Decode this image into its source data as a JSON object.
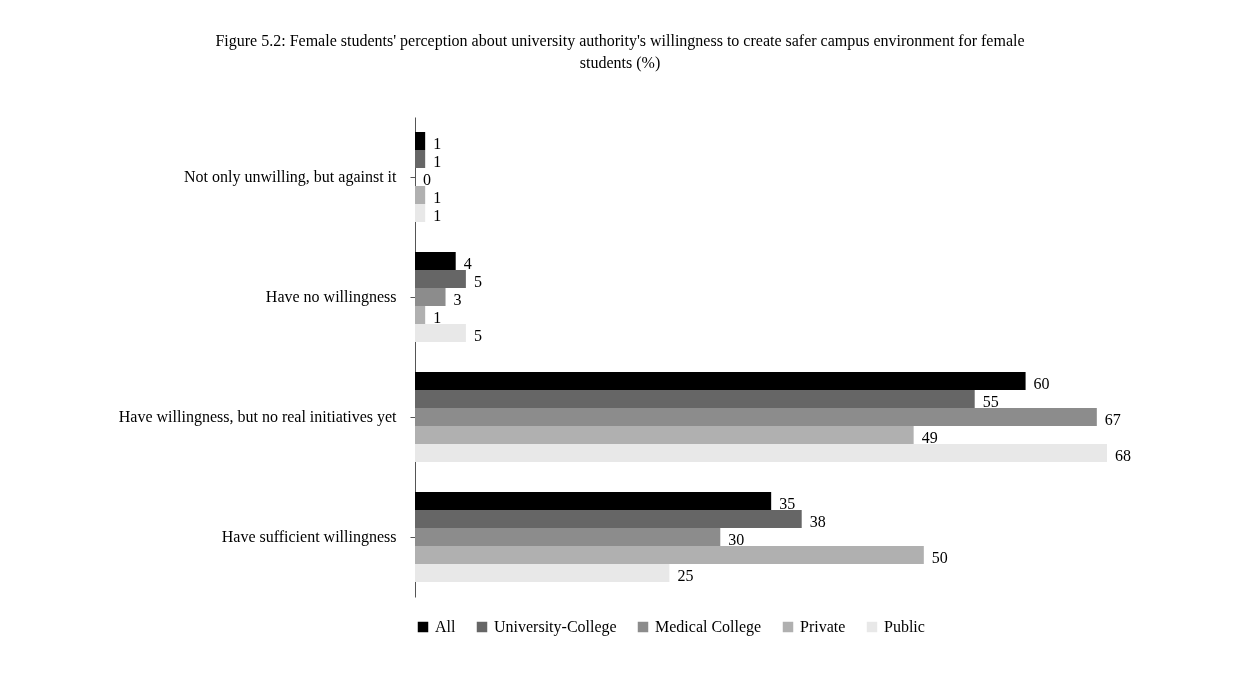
{
  "chart_data": {
    "type": "bar",
    "orientation": "horizontal",
    "title": "Figure 5.2: Female students' perception about university authority's willingness to create safer campus environment for female students (%)",
    "categories": [
      "Not only unwilling, but against it",
      "Have no willingness",
      "Have willingness, but no real initiatives yet",
      "Have sufficient willingness"
    ],
    "series": [
      {
        "name": "All",
        "color": "#000000",
        "values": [
          1,
          4,
          60,
          35
        ]
      },
      {
        "name": "University-College",
        "color": "#666666",
        "values": [
          1,
          5,
          55,
          38
        ]
      },
      {
        "name": "Medical College",
        "color": "#8c8c8c",
        "values": [
          0,
          3,
          67,
          30
        ]
      },
      {
        "name": "Private",
        "color": "#b0b0b0",
        "values": [
          1,
          1,
          49,
          50
        ]
      },
      {
        "name": "Public",
        "color": "#e8e8e8",
        "values": [
          1,
          5,
          68,
          25
        ]
      }
    ],
    "data_labels": true,
    "legend": "bottom",
    "tick_labels": "y"
  }
}
